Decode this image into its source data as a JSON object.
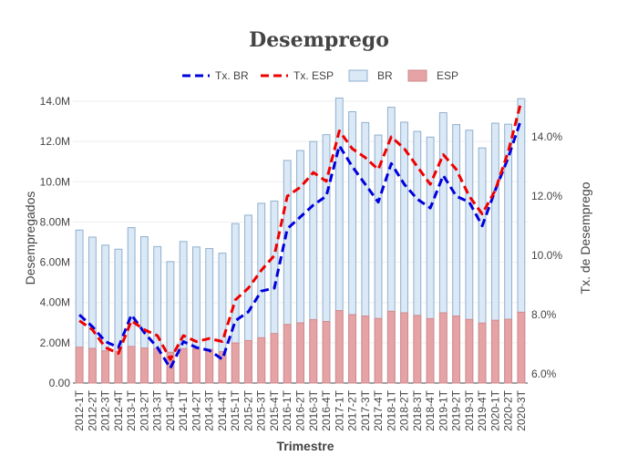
{
  "chart_data": {
    "type": "bar",
    "title": "Desemprego",
    "xlabel": "Trimestre",
    "ylabel": "Desempregados",
    "y2label": "Tx. de Desemprego",
    "categories": [
      "2012-1T",
      "2012-2T",
      "2012-3T",
      "2012-4T",
      "2013-1T",
      "2013-2T",
      "2013-3T",
      "2013-4T",
      "2014-1T",
      "2014-2T",
      "2014-3T",
      "2014-4T",
      "2015-1T",
      "2015-2T",
      "2015-3T",
      "2015-4T",
      "2016-1T",
      "2016-2T",
      "2016-3T",
      "2016-4T",
      "2017-1T",
      "2017-2T",
      "2017-3T",
      "2017-4T",
      "2018-1T",
      "2018-2T",
      "2018-3T",
      "2018-4T",
      "2019-1T",
      "2019-2T",
      "2019-3T",
      "2019-4T",
      "2020-1T",
      "2020-2T",
      "2020-3T"
    ],
    "ylim": [
      0,
      14000000
    ],
    "y_ticks": [
      "0.00",
      "2.00M",
      "4.00M",
      "6.00M",
      "8.00M",
      "10.0M",
      "12.0M",
      "14.0M"
    ],
    "y2lim": [
      5.7,
      15.2
    ],
    "y2_ticks": [
      "6.0%",
      "8.0%",
      "10.0%",
      "12.0%",
      "14.0%"
    ],
    "grid": true,
    "legend_position": "top",
    "bar_series": [
      {
        "name": "BR",
        "color": "#dbe8f5",
        "border": "#8fb0cf",
        "values": [
          7600000,
          7250000,
          6850000,
          6650000,
          7720000,
          7270000,
          6780000,
          6030000,
          7030000,
          6760000,
          6680000,
          6450000,
          7920000,
          8340000,
          8930000,
          9040000,
          11060000,
          11550000,
          12000000,
          12340000,
          14160000,
          13480000,
          12940000,
          12320000,
          13700000,
          12960000,
          12500000,
          12220000,
          13430000,
          12840000,
          12560000,
          11680000,
          12910000,
          12860000,
          14130000
        ]
      },
      {
        "name": "ESP",
        "color": "#e5a3a6",
        "border": "#d08a8d",
        "values": [
          1780000,
          1720000,
          1600000,
          1570000,
          1820000,
          1740000,
          1720000,
          1530000,
          1710000,
          1710000,
          1680000,
          1560000,
          1990000,
          2110000,
          2250000,
          2460000,
          2910000,
          2990000,
          3150000,
          3060000,
          3600000,
          3400000,
          3330000,
          3210000,
          3570000,
          3490000,
          3360000,
          3200000,
          3490000,
          3330000,
          3160000,
          2980000,
          3120000,
          3170000,
          3520000
        ]
      }
    ],
    "line_series": [
      {
        "name": "Tx. BR",
        "color": "#0000dd",
        "values": [
          8.0,
          7.6,
          7.1,
          6.9,
          8.0,
          7.4,
          6.9,
          6.2,
          7.1,
          6.9,
          6.8,
          6.5,
          7.8,
          8.1,
          8.8,
          8.9,
          10.9,
          11.3,
          11.7,
          12.0,
          13.7,
          13.0,
          12.4,
          11.8,
          13.1,
          12.4,
          11.9,
          11.6,
          12.7,
          12.0,
          11.8,
          11.0,
          12.2,
          13.3,
          14.6
        ]
      },
      {
        "name": "Tx. ESP",
        "color": "#ee0000",
        "values": [
          7.8,
          7.5,
          6.9,
          6.7,
          7.8,
          7.5,
          7.3,
          6.5,
          7.3,
          7.1,
          7.2,
          7.1,
          8.5,
          8.9,
          9.5,
          10.0,
          12.0,
          12.3,
          12.8,
          12.5,
          14.2,
          13.6,
          13.3,
          12.9,
          14.0,
          13.6,
          13.0,
          12.4,
          13.4,
          12.9,
          12.0,
          11.4,
          12.2,
          13.5,
          15.2
        ]
      }
    ]
  }
}
